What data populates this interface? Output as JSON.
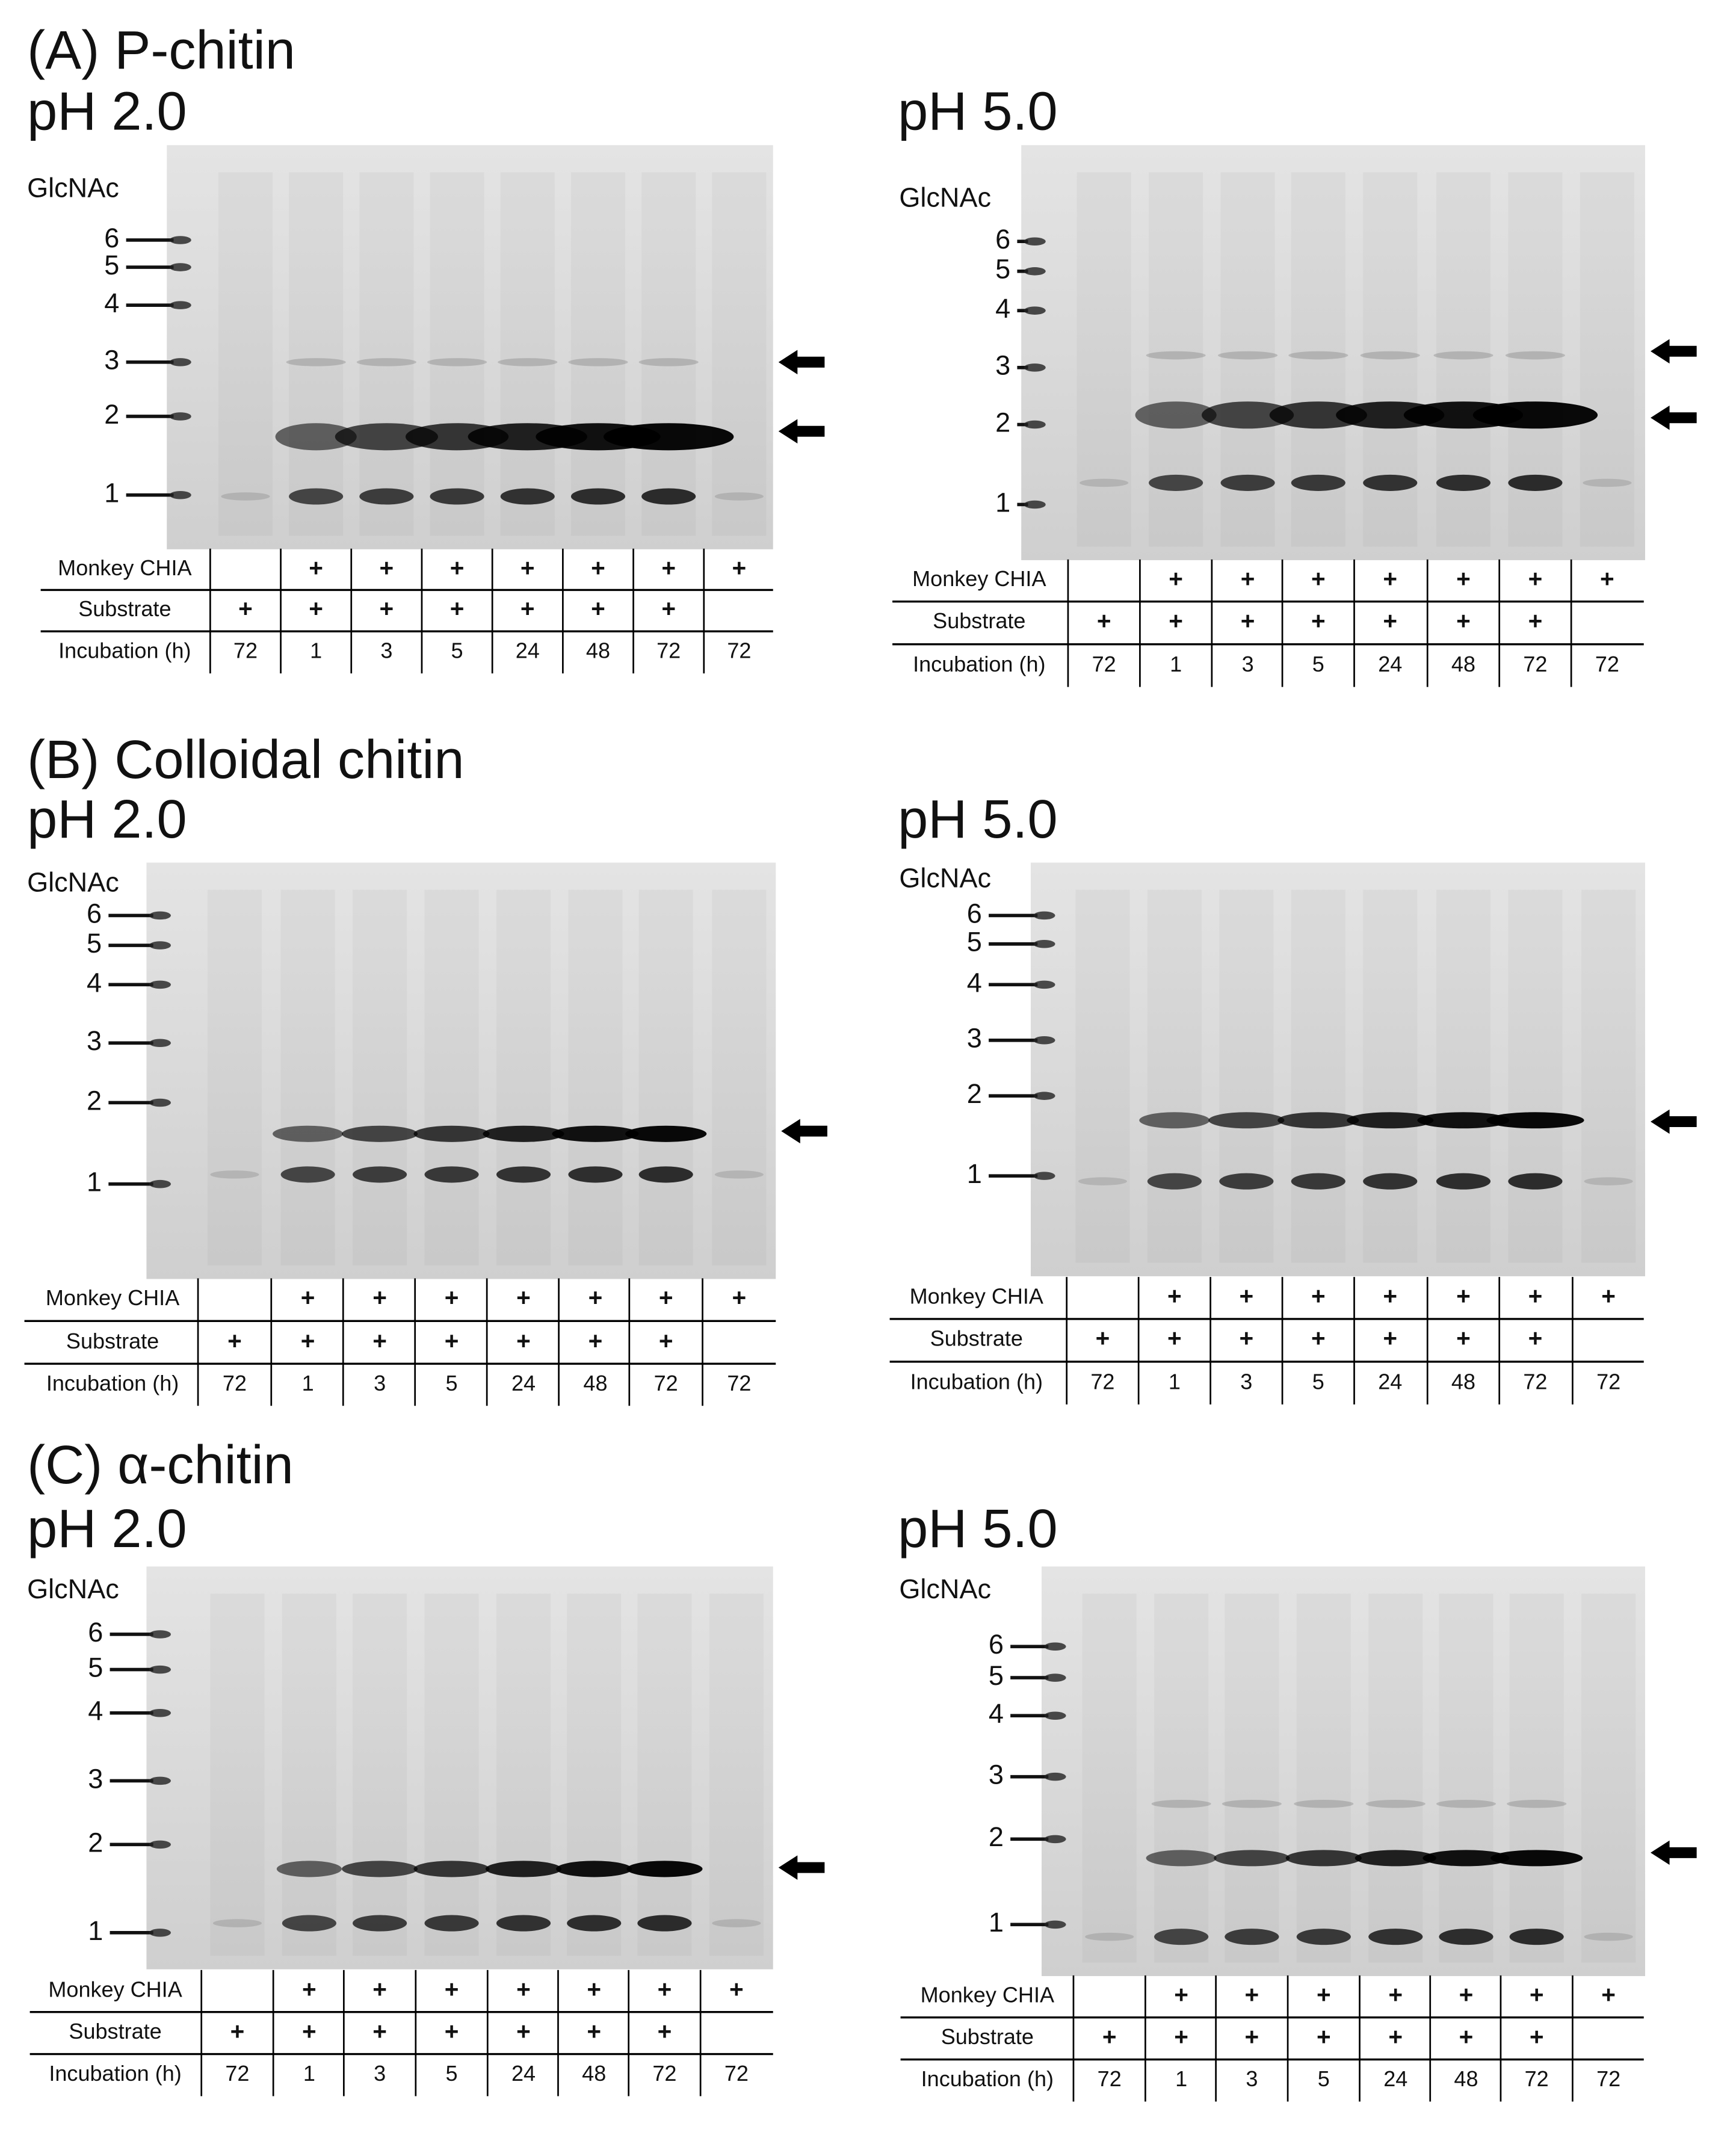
{
  "panels": [
    {
      "title": "(A) P-chitin",
      "gels": [
        {
          "condition": "pH 2.0",
          "marker_title": "GlcNAc",
          "markers": [
            "6",
            "5",
            "4",
            "3",
            "2",
            "1"
          ],
          "table": [
            {
              "label": "Monkey CHIA",
              "cells": [
                null,
                "+",
                "+",
                "+",
                "+",
                "+",
                "+",
                "+"
              ]
            },
            {
              "label": "Substrate",
              "cells": [
                "+",
                "+",
                "+",
                "+",
                "+",
                "+",
                "+",
                null
              ]
            },
            {
              "label": "Incubation (h)",
              "cells": [
                "72",
                "1",
                "3",
                "5",
                "24",
                "48",
                "72",
                "72"
              ]
            }
          ]
        },
        {
          "condition": "pH 5.0",
          "marker_title": "GlcNAc",
          "markers": [
            "6",
            "5",
            "4",
            "3",
            "2",
            "1"
          ],
          "table": [
            {
              "label": "Monkey CHIA",
              "cells": [
                null,
                "+",
                "+",
                "+",
                "+",
                "+",
                "+",
                "+"
              ]
            },
            {
              "label": "Substrate",
              "cells": [
                "+",
                "+",
                "+",
                "+",
                "+",
                "+",
                "+",
                null
              ]
            },
            {
              "label": "Incubation (h)",
              "cells": [
                "72",
                "1",
                "3",
                "5",
                "24",
                "48",
                "72",
                "72"
              ]
            }
          ]
        }
      ]
    },
    {
      "title": "(B) Colloidal chitin",
      "gels": [
        {
          "condition": "pH 2.0",
          "marker_title": "GlcNAc",
          "markers": [
            "6",
            "5",
            "4",
            "3",
            "2",
            "1"
          ],
          "table": [
            {
              "label": "Monkey CHIA",
              "cells": [
                null,
                "+",
                "+",
                "+",
                "+",
                "+",
                "+",
                "+"
              ]
            },
            {
              "label": "Substrate",
              "cells": [
                "+",
                "+",
                "+",
                "+",
                "+",
                "+",
                "+",
                null
              ]
            },
            {
              "label": "Incubation (h)",
              "cells": [
                "72",
                "1",
                "3",
                "5",
                "24",
                "48",
                "72",
                "72"
              ]
            }
          ]
        },
        {
          "condition": "pH 5.0",
          "marker_title": "GlcNAc",
          "markers": [
            "6",
            "5",
            "4",
            "3",
            "2",
            "1"
          ],
          "table": [
            {
              "label": "Monkey CHIA",
              "cells": [
                null,
                "+",
                "+",
                "+",
                "+",
                "+",
                "+",
                "+"
              ]
            },
            {
              "label": "Substrate",
              "cells": [
                "+",
                "+",
                "+",
                "+",
                "+",
                "+",
                "+",
                null
              ]
            },
            {
              "label": "Incubation (h)",
              "cells": [
                "72",
                "1",
                "3",
                "5",
                "24",
                "48",
                "72",
                "72"
              ]
            }
          ]
        }
      ]
    },
    {
      "title": "(C) α-chitin",
      "gels": [
        {
          "condition": "pH 2.0",
          "marker_title": "GlcNAc",
          "markers": [
            "6",
            "5",
            "4",
            "3",
            "2",
            "1"
          ],
          "table": [
            {
              "label": "Monkey CHIA",
              "cells": [
                null,
                "+",
                "+",
                "+",
                "+",
                "+",
                "+",
                "+"
              ]
            },
            {
              "label": "Substrate",
              "cells": [
                "+",
                "+",
                "+",
                "+",
                "+",
                "+",
                "+",
                null
              ]
            },
            {
              "label": "Incubation (h)",
              "cells": [
                "72",
                "1",
                "3",
                "5",
                "24",
                "48",
                "72",
                "72"
              ]
            }
          ]
        },
        {
          "condition": "pH 5.0",
          "marker_title": "GlcNAc",
          "markers": [
            "6",
            "5",
            "4",
            "3",
            "2",
            "1"
          ],
          "table": [
            {
              "label": "Monkey CHIA",
              "cells": [
                null,
                "+",
                "+",
                "+",
                "+",
                "+",
                "+",
                "+"
              ]
            },
            {
              "label": "Substrate",
              "cells": [
                "+",
                "+",
                "+",
                "+",
                "+",
                "+",
                "+",
                null
              ]
            },
            {
              "label": "Incubation (h)",
              "cells": [
                "72",
                "1",
                "3",
                "5",
                "24",
                "48",
                "72",
                "72"
              ]
            }
          ]
        }
      ]
    }
  ]
}
